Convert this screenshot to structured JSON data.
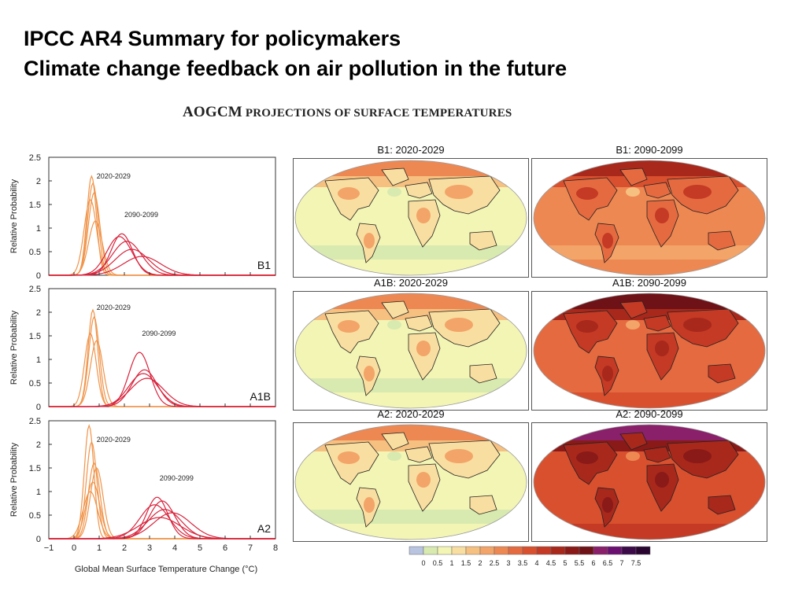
{
  "slide": {
    "title_line1": "IPCC AR4 Summary for policymakers",
    "title_line2": "Climate change feedback on air pollution in the future"
  },
  "figure": {
    "title_prefix": "AOGCM",
    "title_rest": "PROJECTIONS OF SURFACE TEMPERATURES"
  },
  "chart_data": [
    {
      "type": "line",
      "scenario": "B1",
      "xlim": [
        -1,
        8
      ],
      "ylim": [
        0,
        2.5
      ],
      "ylabel": "Relative Probability",
      "yticks": [
        "0",
        "0.5",
        "1",
        "1.5",
        "2",
        "2.5"
      ],
      "period_labels": [
        "2020-2029",
        "2090-2099"
      ],
      "early_peaks": [
        [
          0.7,
          2.1
        ],
        [
          0.75,
          1.95
        ],
        [
          0.8,
          1.75
        ],
        [
          0.65,
          1.6
        ],
        [
          0.85,
          1.15
        ]
      ],
      "late_peaks": [
        [
          1.9,
          0.88
        ],
        [
          1.8,
          0.82
        ],
        [
          2.1,
          0.72
        ],
        [
          2.3,
          0.55
        ],
        [
          2.7,
          0.4
        ]
      ]
    },
    {
      "type": "line",
      "scenario": "A1B",
      "xlim": [
        -1,
        8
      ],
      "ylim": [
        0,
        2.5
      ],
      "ylabel": "Relative Probability",
      "yticks": [
        "0",
        "0.5",
        "1",
        "1.5",
        "2",
        "2.5"
      ],
      "period_labels": [
        "2020-2029",
        "2090-2099"
      ],
      "early_peaks": [
        [
          0.75,
          2.05
        ],
        [
          0.8,
          1.9
        ],
        [
          0.65,
          1.55
        ],
        [
          0.9,
          1.4
        ]
      ],
      "late_peaks": [
        [
          2.6,
          1.15
        ],
        [
          2.8,
          0.78
        ],
        [
          2.75,
          0.7
        ],
        [
          2.9,
          0.6
        ]
      ]
    },
    {
      "type": "line",
      "scenario": "A2",
      "xlim": [
        -1,
        8
      ],
      "ylim": [
        0,
        2.5
      ],
      "ylabel": "Relative Probability",
      "xlabel": "Global Mean Surface Temperature Change (°C)",
      "xticks": [
        "−1",
        "0",
        "1",
        "2",
        "3",
        "4",
        "5",
        "6",
        "7",
        "8"
      ],
      "yticks": [
        "0",
        "0.5",
        "1",
        "1.5",
        "2",
        "2.5"
      ],
      "period_labels": [
        "2020-2029",
        "2090-2099"
      ],
      "early_peaks": [
        [
          0.6,
          2.4
        ],
        [
          0.7,
          2.05
        ],
        [
          0.8,
          1.6
        ],
        [
          0.9,
          1.5
        ],
        [
          0.75,
          1.2
        ],
        [
          0.65,
          1.0
        ]
      ],
      "late_peaks": [
        [
          3.3,
          0.88
        ],
        [
          3.5,
          0.8
        ],
        [
          3.2,
          0.72
        ],
        [
          3.6,
          0.62
        ],
        [
          3.9,
          0.55
        ],
        [
          3.4,
          0.45
        ]
      ]
    }
  ],
  "maps": [
    {
      "label": "B1: 2020-2029",
      "level": 0.5
    },
    {
      "label": "B1: 2090-2099",
      "level": 2.5
    },
    {
      "label": "A1B: 2020-2029",
      "level": 0.55
    },
    {
      "label": "A1B: 2090-2099",
      "level": 3.3
    },
    {
      "label": "A2: 2020-2029",
      "level": 0.5
    },
    {
      "label": "A2: 2090-2099",
      "level": 3.8
    }
  ],
  "colorbar": {
    "labels": [
      "0",
      "0.5",
      "1",
      "1.5",
      "2",
      "2.5",
      "3",
      "3.5",
      "4",
      "4.5",
      "5",
      "5.5",
      "6",
      "6.5",
      "7",
      "7.5"
    ],
    "colors": [
      "#b8c4e0",
      "#d8eab0",
      "#f3f5b5",
      "#f8deA0",
      "#f6c080",
      "#f3a468",
      "#ee8852",
      "#e56a40",
      "#d9502f",
      "#c43a24",
      "#a8281c",
      "#8a1a18",
      "#6e1217",
      "#8a1f6a",
      "#6a1070",
      "#3c0a48",
      "#2a0530"
    ]
  },
  "colors": {
    "early_curve": "#f0944a",
    "late_curve": "#d8233c"
  }
}
